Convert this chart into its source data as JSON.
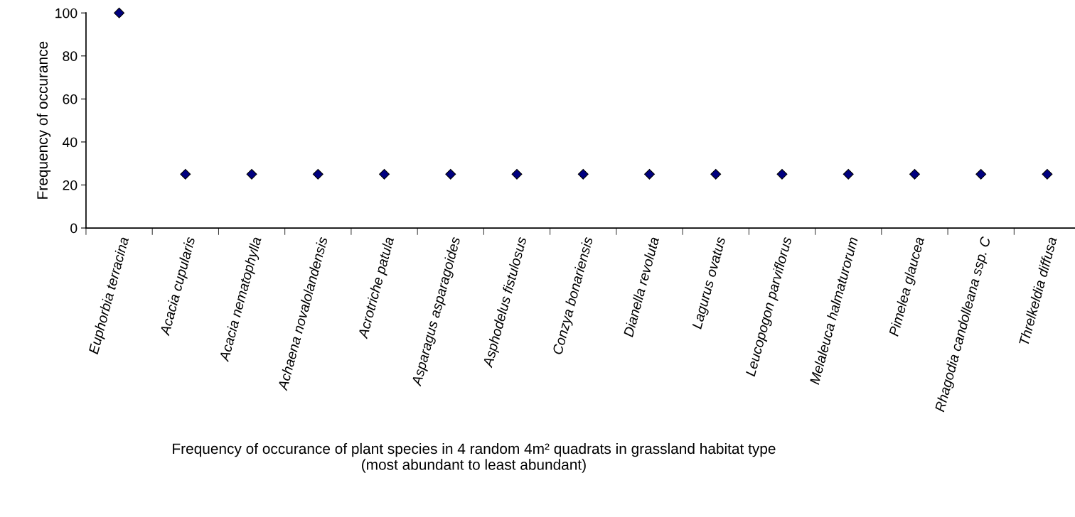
{
  "chart_data": {
    "type": "scatter",
    "xlabel": "Frequency of occurance of plant species in 4 random 4m² quadrats in grassland habitat type\n(most abundant to least abundant)",
    "ylabel": "Frequency of occurance",
    "categories": [
      "Euphorbia terracina",
      "Acacia cupularis",
      "Acacia nematophylla",
      "Achaena novalolandensis",
      "Acrotriche patula",
      "Asparagus asparagoides",
      "Asphodelus fistulosus",
      "Conzya bonariensis",
      "Dianella revoluta",
      "Lagurus ovatus",
      "Leucopogon parviflorus",
      "Melaleuca halmaturorum",
      "Pimelea glaucea",
      "Rhagodia candolleana ssp. C",
      "Threlkeldia diffusa"
    ],
    "values": [
      100,
      25,
      25,
      25,
      25,
      25,
      25,
      25,
      25,
      25,
      25,
      25,
      25,
      25,
      25
    ],
    "color": "#000080",
    "marker": "diamond",
    "ylim": [
      0,
      100
    ],
    "yticks": [
      0,
      20,
      40,
      60,
      80,
      100
    ],
    "grid": false,
    "legend": false
  }
}
